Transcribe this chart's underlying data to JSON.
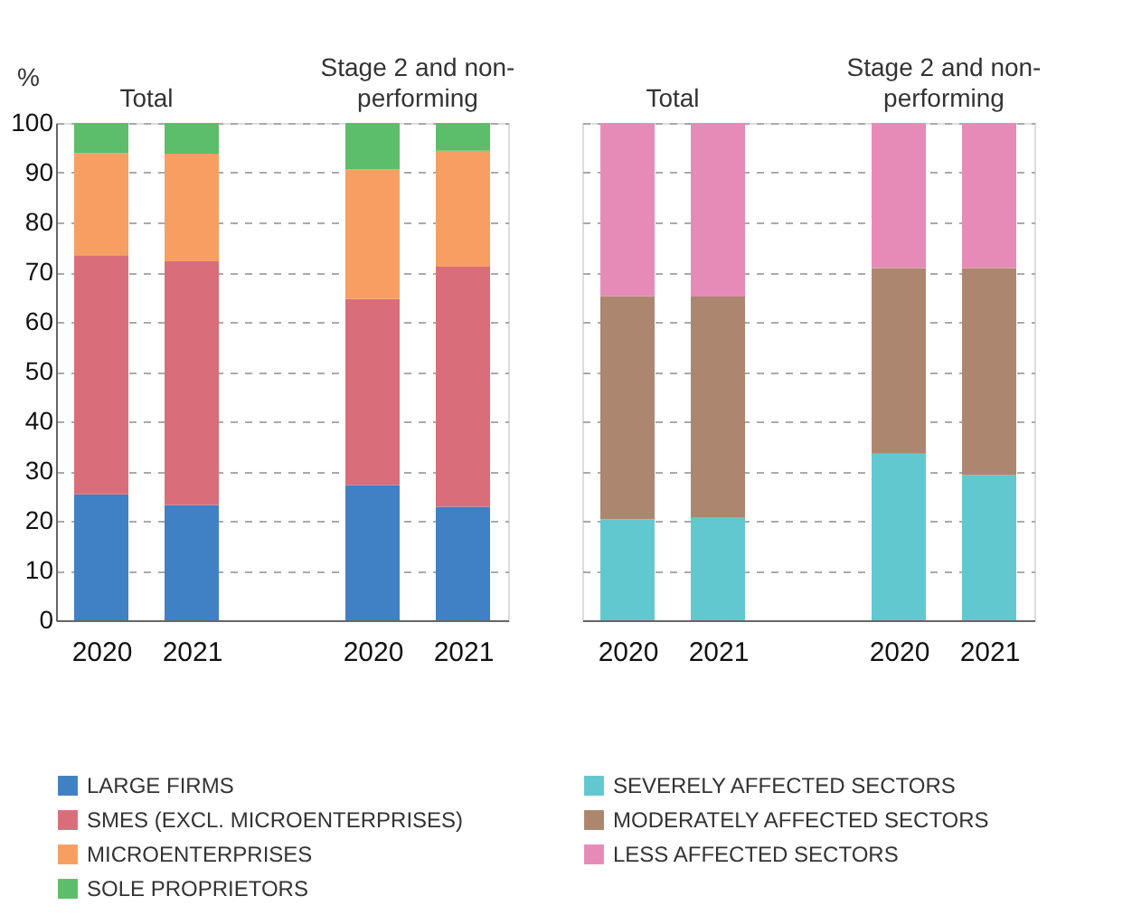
{
  "chart_data": [
    {
      "type": "bar",
      "stacked": true,
      "ylabel": "%",
      "categories": [
        "2020",
        "2021",
        null,
        "2020",
        "2021"
      ],
      "annotations": [
        "Total",
        "Stage 2 and non-performing"
      ],
      "series": [
        {
          "name": "LARGE FIRMS",
          "color": "#4080c4",
          "values": [
            25.3,
            23.2,
            null,
            27.2,
            22.8
          ]
        },
        {
          "name": "SMES (EXCL. MICROENTERPRISES)",
          "color": "#d96e7a",
          "values": [
            48.1,
            49.0,
            null,
            37.4,
            48.3
          ]
        },
        {
          "name": "MICROENTERPRISES",
          "color": "#f79f62",
          "values": [
            20.5,
            21.6,
            null,
            26.1,
            23.3
          ]
        },
        {
          "name": "SOLE PROPRIETORS",
          "color": "#5cbd6a",
          "values": [
            6.1,
            6.2,
            null,
            9.3,
            5.6
          ]
        }
      ],
      "ylim": [
        0,
        100
      ],
      "yticks": [
        0,
        10,
        20,
        30,
        40,
        50,
        60,
        70,
        80,
        90,
        100
      ],
      "grid": "y",
      "legend": "bottom"
    },
    {
      "type": "bar",
      "stacked": true,
      "categories": [
        "2020",
        "2021",
        null,
        "2020",
        "2021"
      ],
      "annotations": [
        "Total",
        "Stage 2 and non-performing"
      ],
      "series": [
        {
          "name": "SEVERELY AFFECTED SECTORS",
          "color": "#62c8cf",
          "values": [
            20.3,
            20.6,
            null,
            33.5,
            29.2
          ]
        },
        {
          "name": "MODERATELY AFFECTED SECTORS",
          "color": "#ad8670",
          "values": [
            44.9,
            44.5,
            null,
            37.3,
            41.6
          ]
        },
        {
          "name": "LESS AFFECTED SECTORS",
          "color": "#e68bb8",
          "values": [
            34.8,
            34.9,
            null,
            29.2,
            29.2
          ]
        }
      ],
      "ylim": [
        0,
        100
      ],
      "yticks": [
        0,
        10,
        20,
        30,
        40,
        50,
        60,
        70,
        80,
        90,
        100
      ],
      "grid": "y",
      "legend": "bottom",
      "tick_labels": "x"
    }
  ]
}
